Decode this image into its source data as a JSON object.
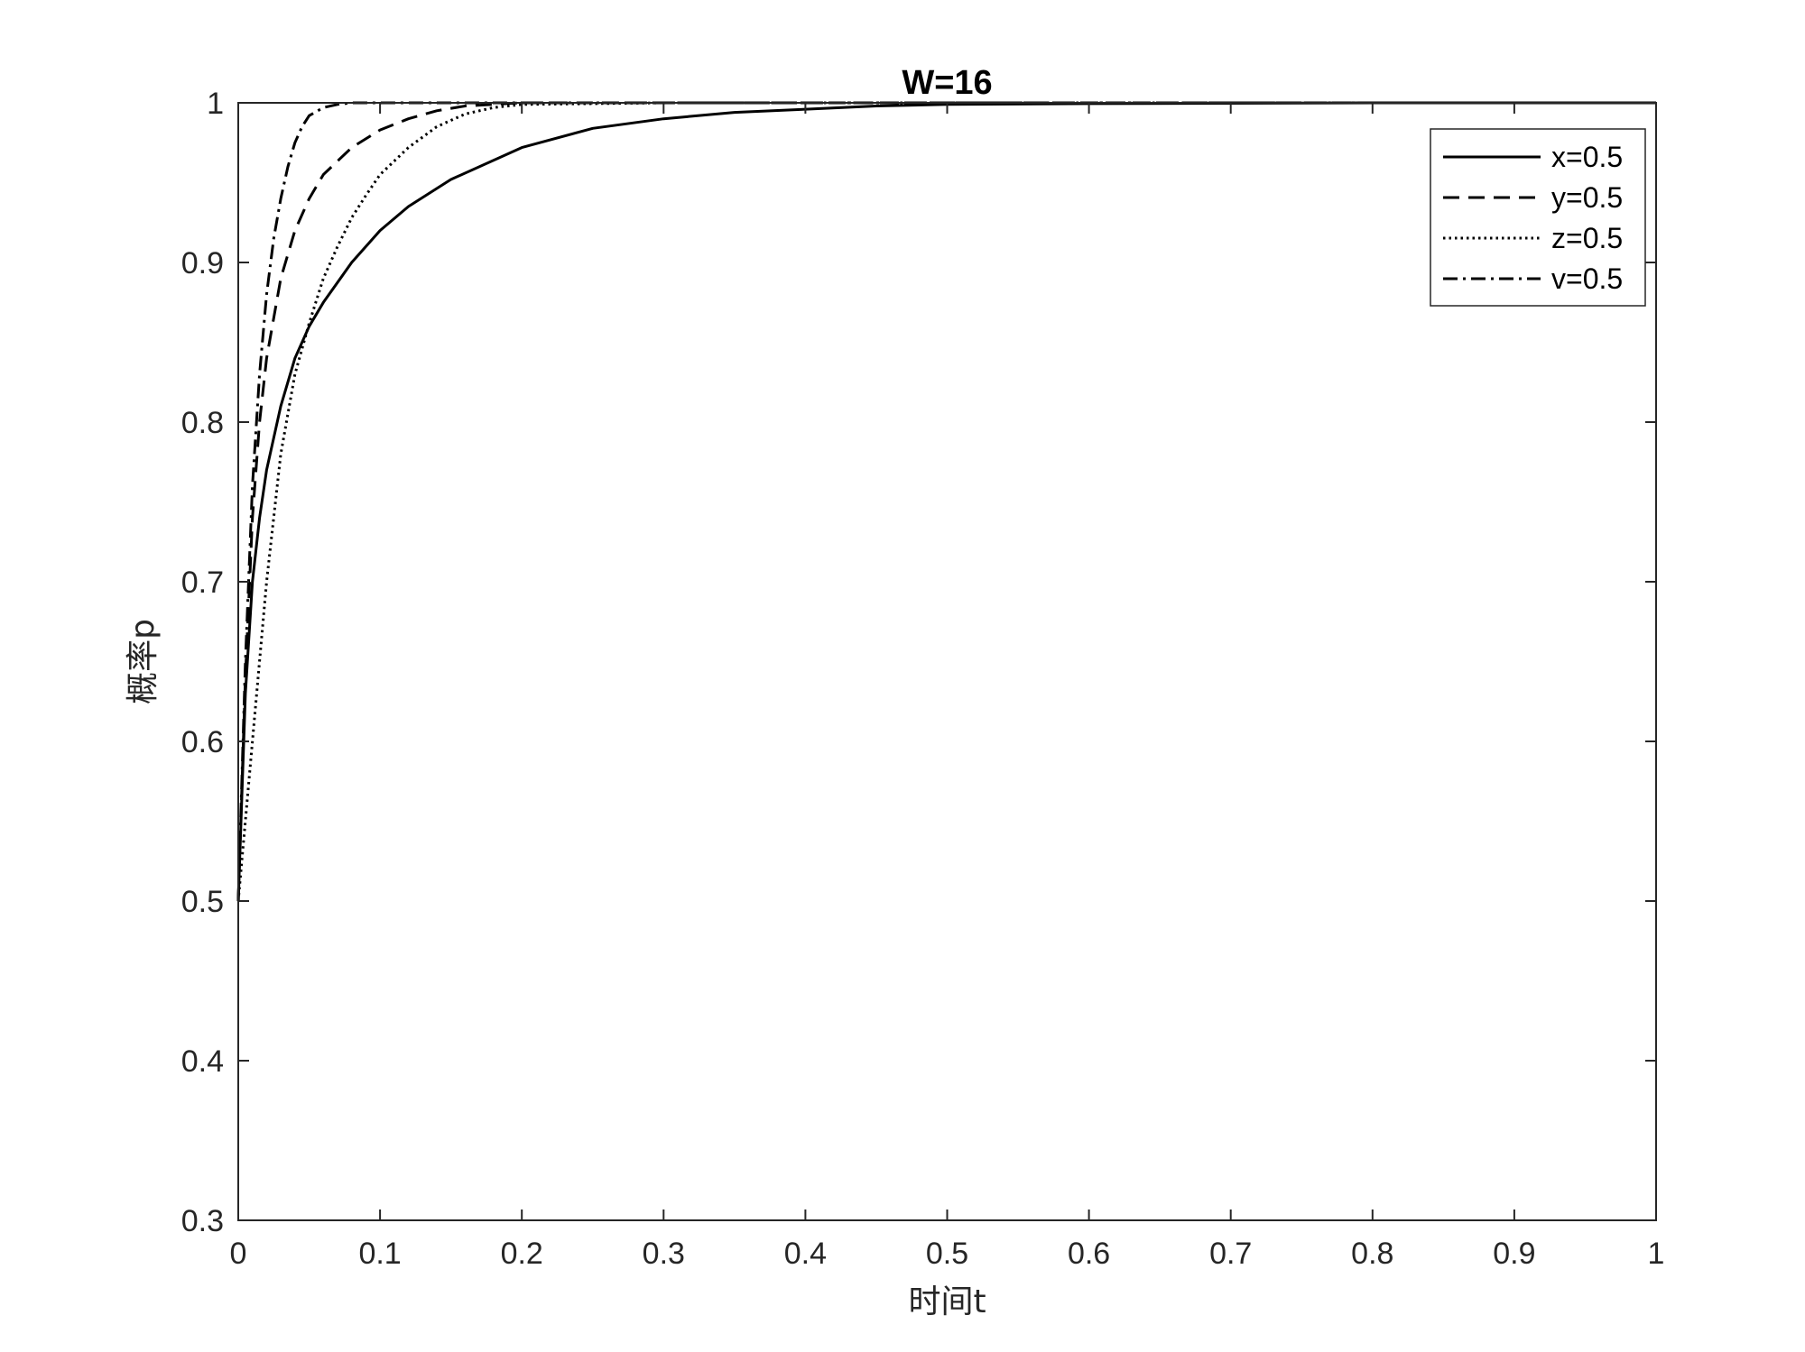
{
  "chart_data": {
    "type": "line",
    "title": "W=16",
    "xlabel": "时间t",
    "ylabel": "概率p",
    "xlim": [
      0,
      1
    ],
    "ylim": [
      0.3,
      1
    ],
    "xticks": [
      "0",
      "0.1",
      "0.2",
      "0.3",
      "0.4",
      "0.5",
      "0.6",
      "0.7",
      "0.8",
      "0.9",
      "1"
    ],
    "yticks": [
      "0.3",
      "0.4",
      "0.5",
      "0.6",
      "0.7",
      "0.8",
      "0.9",
      "1"
    ],
    "grid": false,
    "legend_position": "top-right",
    "series": [
      {
        "name": "x=0.5",
        "style": "solid",
        "x": [
          0,
          0.005,
          0.01,
          0.015,
          0.02,
          0.03,
          0.04,
          0.05,
          0.06,
          0.08,
          0.1,
          0.12,
          0.15,
          0.2,
          0.25,
          0.3,
          0.35,
          0.4,
          0.45,
          0.5,
          0.6,
          0.8,
          1.0
        ],
        "y": [
          0.5,
          0.63,
          0.7,
          0.74,
          0.77,
          0.81,
          0.84,
          0.86,
          0.875,
          0.9,
          0.92,
          0.935,
          0.952,
          0.972,
          0.984,
          0.99,
          0.994,
          0.996,
          0.998,
          0.999,
          0.9995,
          1.0,
          1.0
        ]
      },
      {
        "name": "y=0.5",
        "style": "dashed",
        "x": [
          0,
          0.005,
          0.01,
          0.015,
          0.02,
          0.03,
          0.04,
          0.05,
          0.06,
          0.08,
          0.1,
          0.12,
          0.14,
          0.16,
          0.2,
          0.3,
          0.5,
          1.0
        ],
        "y": [
          0.5,
          0.64,
          0.74,
          0.8,
          0.84,
          0.89,
          0.92,
          0.94,
          0.955,
          0.972,
          0.983,
          0.99,
          0.995,
          0.998,
          1.0,
          1.0,
          1.0,
          1.0
        ]
      },
      {
        "name": "z=0.5",
        "style": "dotted",
        "x": [
          0,
          0.01,
          0.02,
          0.03,
          0.04,
          0.05,
          0.06,
          0.07,
          0.08,
          0.09,
          0.1,
          0.12,
          0.14,
          0.16,
          0.18,
          0.2,
          0.3,
          0.5,
          1.0
        ],
        "y": [
          0.5,
          0.6,
          0.7,
          0.78,
          0.83,
          0.862,
          0.89,
          0.91,
          0.928,
          0.942,
          0.955,
          0.972,
          0.985,
          0.993,
          0.997,
          0.999,
          1.0,
          1.0,
          1.0
        ]
      },
      {
        "name": "v=0.5",
        "style": "dashdot",
        "x": [
          0,
          0.005,
          0.01,
          0.015,
          0.02,
          0.025,
          0.03,
          0.035,
          0.04,
          0.045,
          0.05,
          0.06,
          0.07,
          0.08,
          0.1,
          0.2,
          0.5,
          1.0
        ],
        "y": [
          0.5,
          0.65,
          0.76,
          0.83,
          0.88,
          0.915,
          0.94,
          0.96,
          0.975,
          0.985,
          0.992,
          0.997,
          0.999,
          1.0,
          1.0,
          1.0,
          1.0,
          1.0
        ]
      }
    ]
  }
}
